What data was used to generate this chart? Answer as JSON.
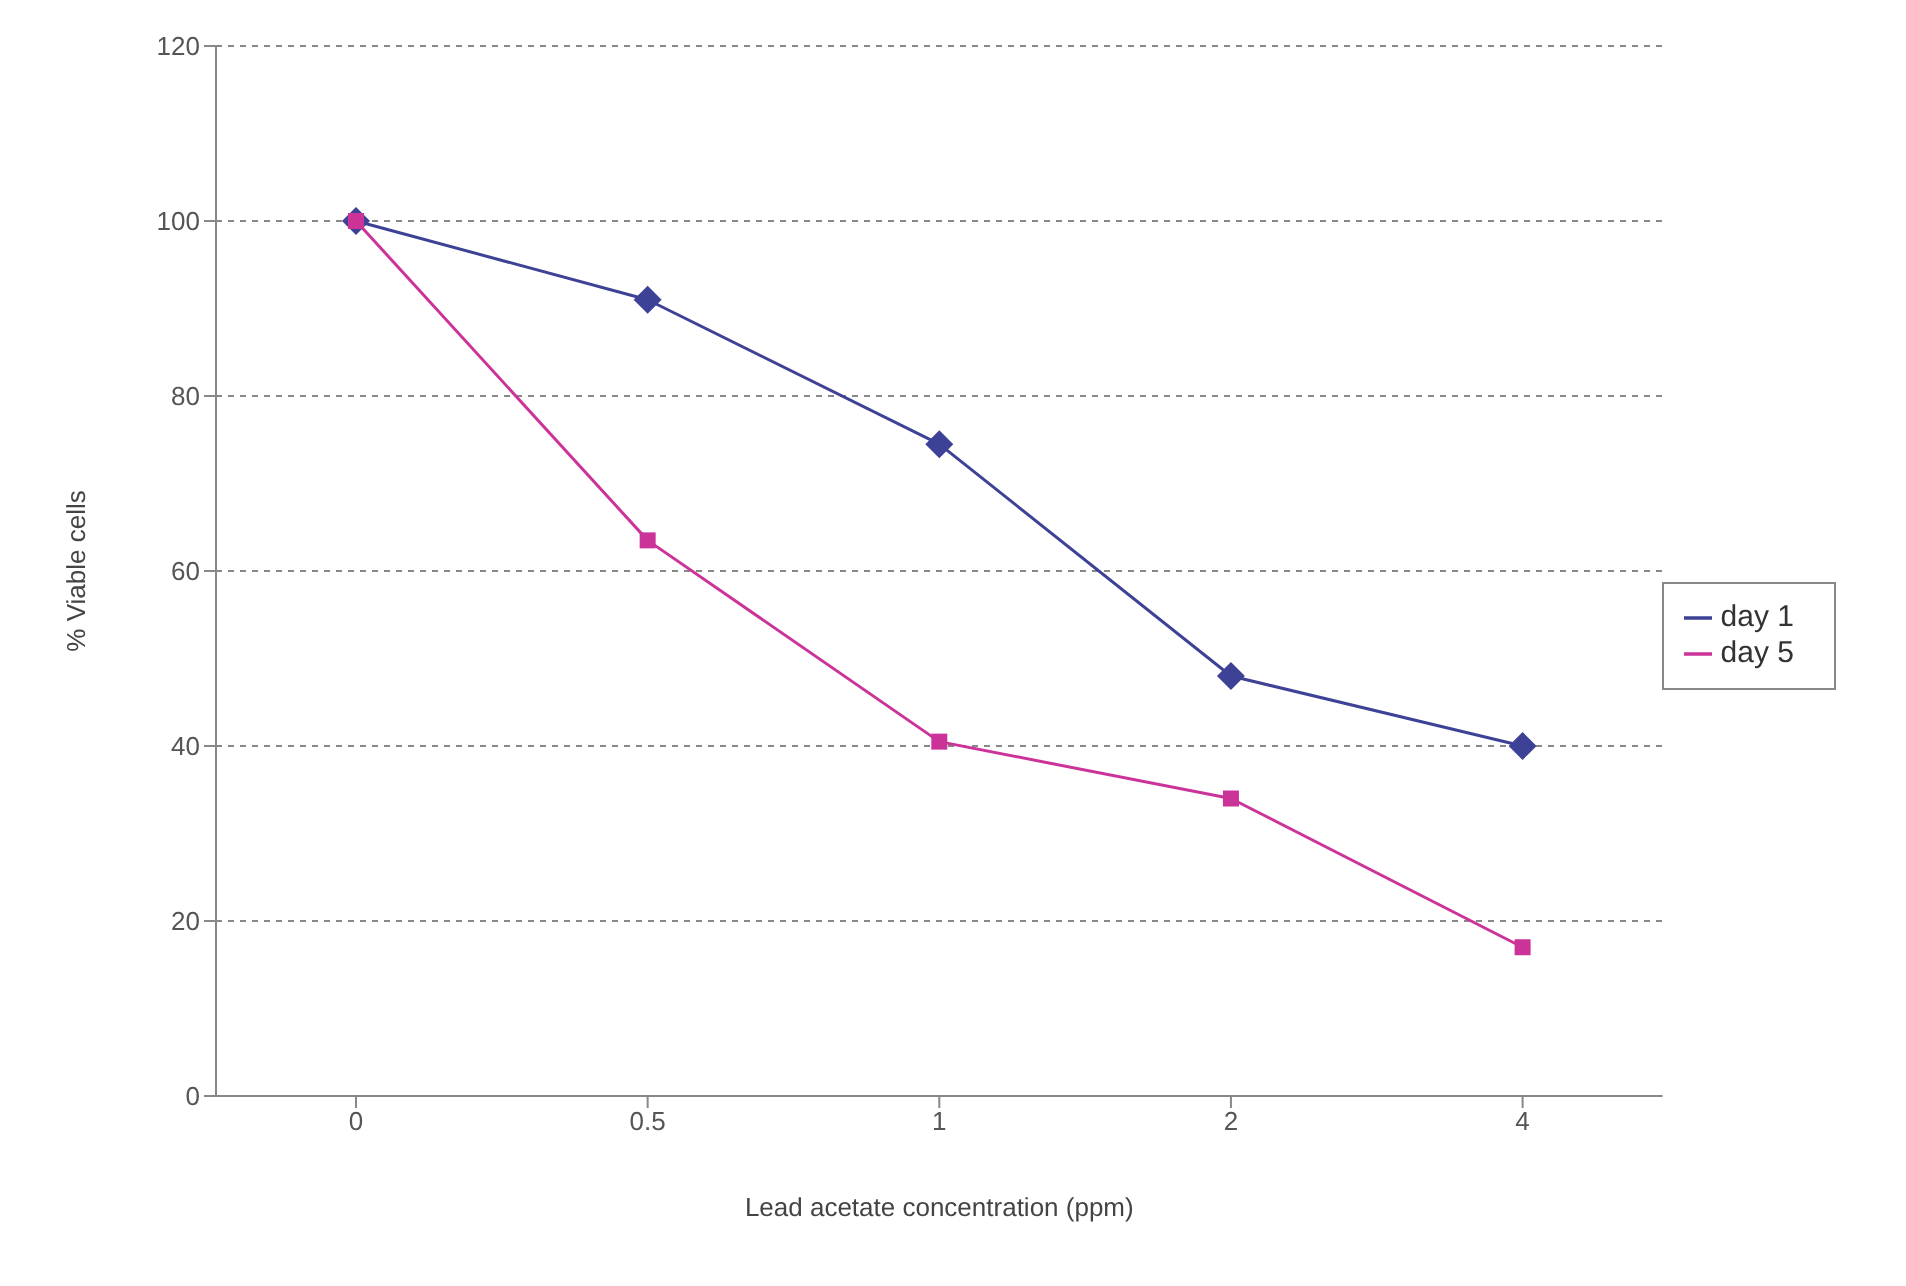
{
  "chart_data": {
    "type": "line",
    "xlabel": "Lead acetate concentration (ppm)",
    "ylabel": "% Viable cells",
    "categories": [
      "0",
      "0.5",
      "1",
      "2",
      "4"
    ],
    "series": [
      {
        "name": "day 1",
        "color": "#3d4296",
        "values": [
          100,
          91,
          74.5,
          48,
          40
        ],
        "marker": "diamond"
      },
      {
        "name": "day 5",
        "color": "#cc3399",
        "values": [
          100,
          63.5,
          40.5,
          34,
          17
        ],
        "marker": "square"
      }
    ],
    "ylim": [
      0,
      120
    ],
    "yticks": [
      0,
      20,
      40,
      60,
      80,
      100,
      120
    ],
    "grid": "y",
    "legend": "right",
    "line_style": "solid"
  }
}
